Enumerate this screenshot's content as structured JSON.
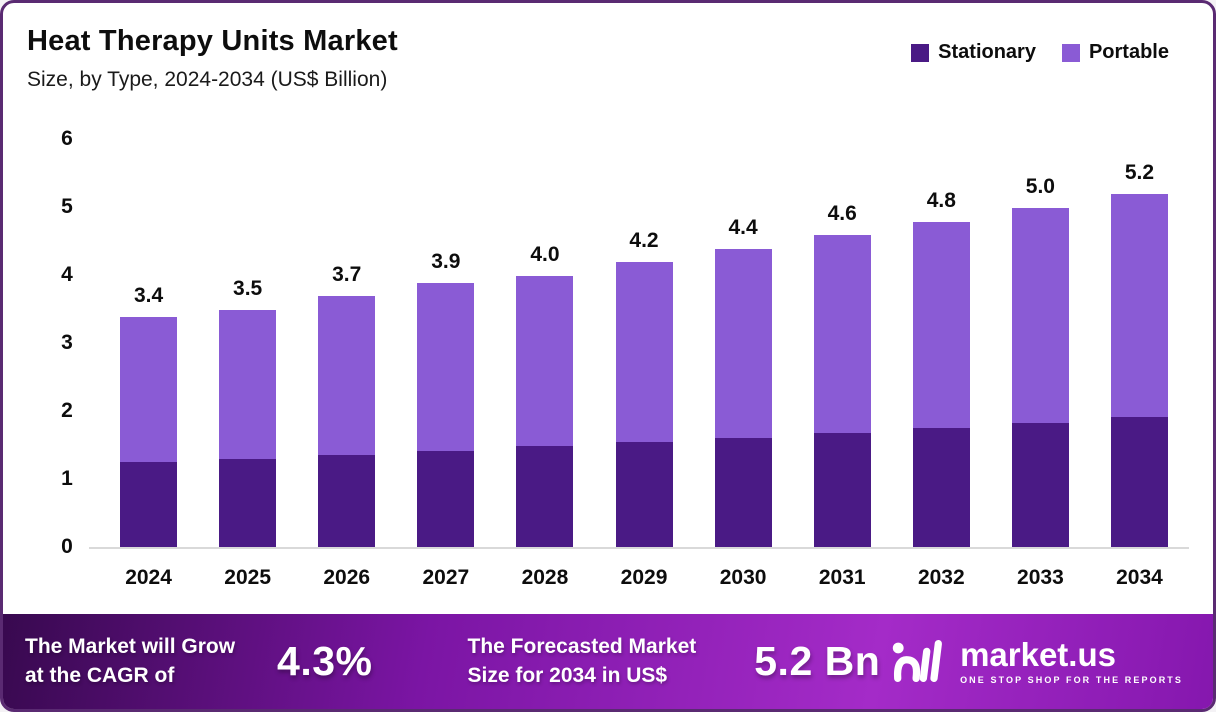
{
  "header": {
    "title": "Heat Therapy Units Market",
    "subtitle": "Size, by Type, 2024-2034 (US$ Billion)"
  },
  "legend": [
    {
      "label": "Stationary",
      "color": "#4A1A85"
    },
    {
      "label": "Portable",
      "color": "#8A5BD5"
    }
  ],
  "chart_data": {
    "type": "bar",
    "stacked": true,
    "title": "Heat Therapy Units Market Size, by Type, 2024-2034 (US$ Billion)",
    "categories": [
      "2024",
      "2025",
      "2026",
      "2027",
      "2028",
      "2029",
      "2030",
      "2031",
      "2032",
      "2033",
      "2034"
    ],
    "series": [
      {
        "name": "Stationary",
        "color": "#4A1A85",
        "values": [
          1.26,
          1.31,
          1.37,
          1.43,
          1.5,
          1.56,
          1.62,
          1.69,
          1.76,
          1.84,
          1.93
        ]
      },
      {
        "name": "Portable",
        "color": "#8A5BD5",
        "values": [
          2.14,
          2.19,
          2.33,
          2.47,
          2.5,
          2.64,
          2.78,
          2.91,
          3.04,
          3.16,
          3.27
        ]
      }
    ],
    "total_labels": [
      "3.4",
      "3.5",
      "3.7",
      "3.9",
      "4.0",
      "4.2",
      "4.4",
      "4.6",
      "4.8",
      "5.0",
      "5.2"
    ],
    "yticks": [
      0,
      1,
      2,
      3,
      4,
      5,
      6
    ],
    "ylim": [
      0,
      6
    ],
    "xlabel": "",
    "ylabel": "",
    "grid": false,
    "legend_position": "top-right"
  },
  "banner": {
    "cagr_label_line1": "The Market will Grow",
    "cagr_label_line2": "at the CAGR of",
    "cagr_value": "4.3%",
    "forecast_label_line1": "The Forecasted Market",
    "forecast_label_line2": "Size for 2034 in US$",
    "forecast_value": "5.2 Bn",
    "logo_text": "market.us",
    "logo_tagline": "ONE STOP SHOP FOR THE REPORTS",
    "gradient": [
      "#38094F",
      "#7B15A4",
      "#A42BC8",
      "#8517AE"
    ]
  },
  "colors": {
    "card_border": "#5A2A72",
    "baseline": "#D9D9D9",
    "text": "#0d0d0d"
  }
}
